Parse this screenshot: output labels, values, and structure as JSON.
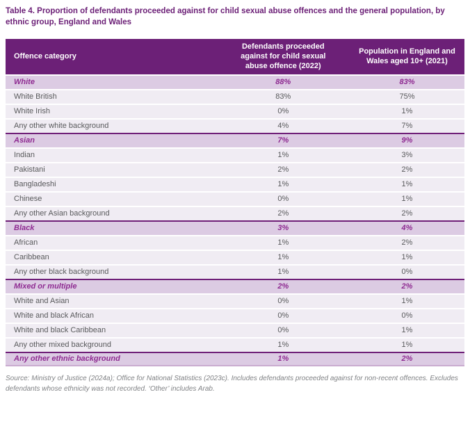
{
  "title": "Table 4. Proportion of defendants proceeded against for child sexual abuse offences and the general population, by ethnic group, England and Wales",
  "table": {
    "columns": [
      "Offence category",
      "Defendants proceeded against for child sexual abuse offence (2022)",
      "Population in England and Wales aged 10+ (2021)"
    ],
    "rows": [
      {
        "label": "White",
        "type": "group",
        "defendants": "88%",
        "population": "83%"
      },
      {
        "label": "White British",
        "type": "sub",
        "defendants": "83%",
        "population": "75%"
      },
      {
        "label": "White Irish",
        "type": "sub",
        "defendants": "0%",
        "population": "1%"
      },
      {
        "label": "Any other white background",
        "type": "sub",
        "defendants": "4%",
        "population": "7%"
      },
      {
        "label": "Asian",
        "type": "group",
        "defendants": "7%",
        "population": "9%"
      },
      {
        "label": "Indian",
        "type": "sub",
        "defendants": "1%",
        "population": "3%"
      },
      {
        "label": "Pakistani",
        "type": "sub",
        "defendants": "2%",
        "population": "2%"
      },
      {
        "label": "Bangladeshi",
        "type": "sub",
        "defendants": "1%",
        "population": "1%"
      },
      {
        "label": "Chinese",
        "type": "sub",
        "defendants": "0%",
        "population": "1%"
      },
      {
        "label": "Any other Asian background",
        "type": "sub",
        "defendants": "2%",
        "population": "2%"
      },
      {
        "label": "Black",
        "type": "group",
        "defendants": "3%",
        "population": "4%"
      },
      {
        "label": "African",
        "type": "sub",
        "defendants": "1%",
        "population": "2%"
      },
      {
        "label": "Caribbean",
        "type": "sub",
        "defendants": "1%",
        "population": "1%"
      },
      {
        "label": "Any other black background",
        "type": "sub",
        "defendants": "1%",
        "population": "0%"
      },
      {
        "label": "Mixed or multiple",
        "type": "group",
        "defendants": "2%",
        "population": "2%"
      },
      {
        "label": "White and Asian",
        "type": "sub",
        "defendants": "0%",
        "population": "1%"
      },
      {
        "label": "White and black African",
        "type": "sub",
        "defendants": "0%",
        "population": "0%"
      },
      {
        "label": "White and black Caribbean",
        "type": "sub",
        "defendants": "0%",
        "population": "1%"
      },
      {
        "label": "Any other mixed background",
        "type": "sub",
        "defendants": "1%",
        "population": "1%"
      },
      {
        "label": "Any other ethnic background",
        "type": "group",
        "defendants": "1%",
        "population": "2%"
      }
    ]
  },
  "source_note": "Source: Ministry of Justice (2024a); Office for National Statistics (2023c). Includes defendants proceeded against for non-recent offences. Excludes defendants whose ethnicity was not recorded. ‘Other’ includes Arab.",
  "colors": {
    "header_background": "#6C2077",
    "header_text": "#ffffff",
    "group_row_background": "#DCCBE3",
    "group_row_text": "#8E2A91",
    "group_row_border": "#6F1F78",
    "sub_row_background": "#F0ECF3",
    "sub_row_text": "#58595B",
    "title_text": "#6C2077",
    "source_text": "#808285",
    "table_bottom_border": "#C9ABCF"
  }
}
